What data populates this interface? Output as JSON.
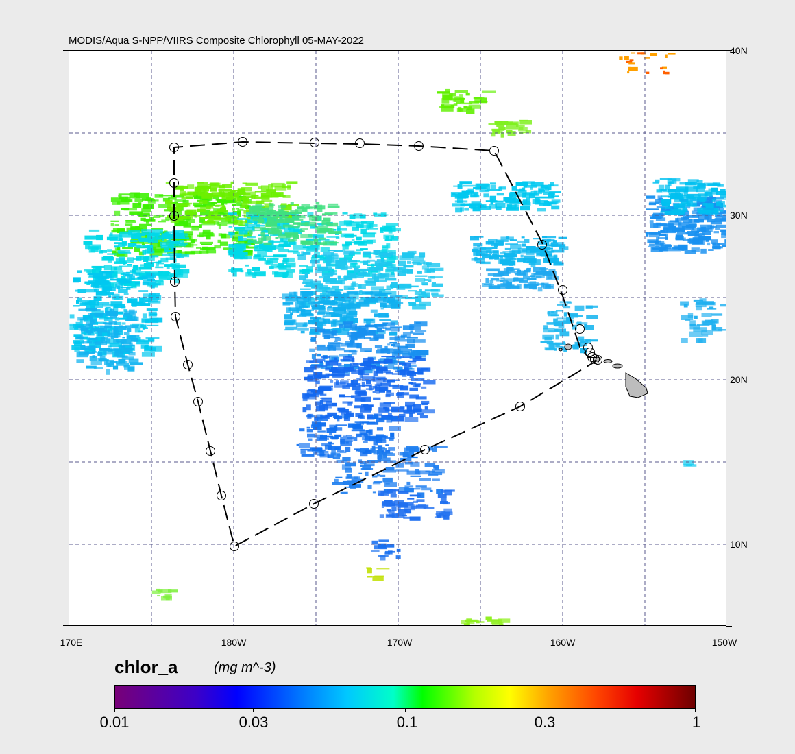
{
  "title": "MODIS/Aqua S-NPP/VIIRS Composite Chlorophyll 05-MAY-2022",
  "lon_labels": [
    "170E",
    "180W",
    "170W",
    "160W",
    "150W"
  ],
  "lat_labels": [
    "40N",
    "30N",
    "20N",
    "10N"
  ],
  "colorbar": {
    "variable": "chlor_a",
    "units": "(mg m^-3)",
    "tick_labels": [
      "0.01",
      "0.03",
      "0.1",
      "0.3",
      "1"
    ]
  },
  "colors": {
    "background": "#ebebeb",
    "grid": "#5a5a8c",
    "track": "#000000",
    "land": "#bdbdbd"
  }
}
